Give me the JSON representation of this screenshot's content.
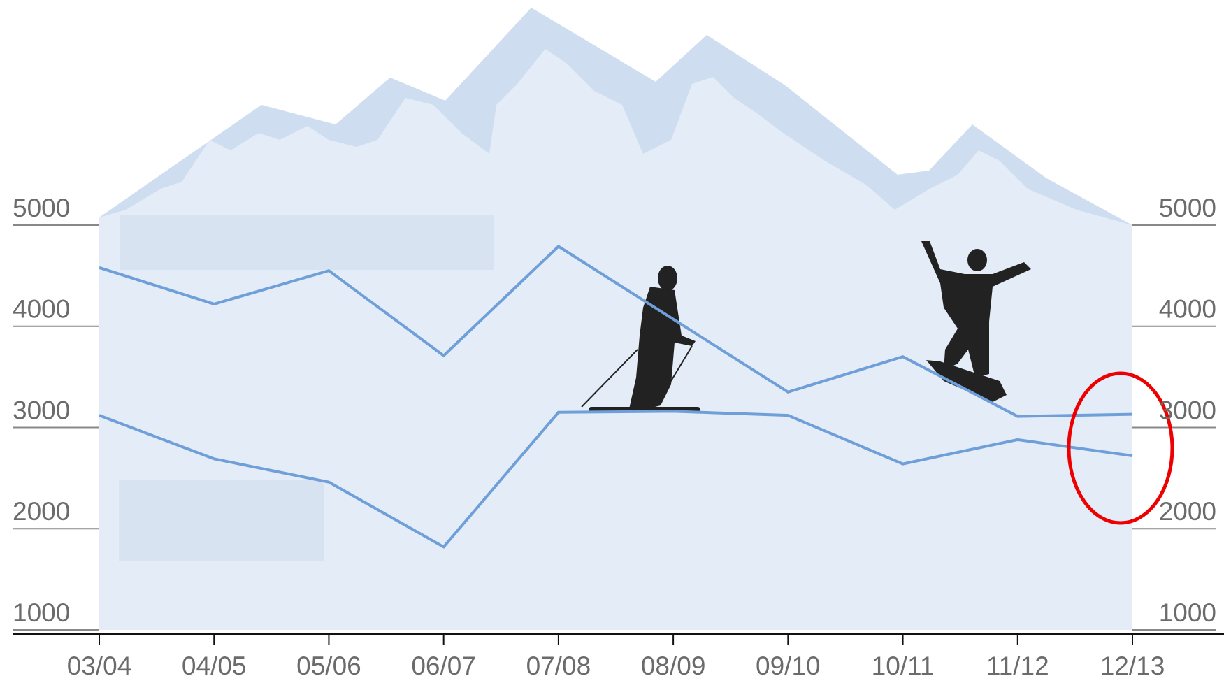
{
  "chart_data": {
    "type": "line",
    "categories": [
      "03/04",
      "04/05",
      "05/06",
      "06/07",
      "07/08",
      "08/09",
      "09/10",
      "10/11",
      "11/12",
      "12/13"
    ],
    "series": [
      {
        "color": "#6f9fd8",
        "values": [
          4580,
          4220,
          4550,
          3710,
          4790,
          4070,
          3350,
          3700,
          3110,
          3130
        ]
      },
      {
        "color": "#6f9fd8",
        "values": [
          3120,
          2690,
          2460,
          1820,
          3150,
          3160,
          3120,
          2640,
          2880,
          2720
        ]
      }
    ],
    "ylim": [
      1000,
      5000
    ],
    "yticks": [
      1000,
      2000,
      3000,
      4000,
      5000
    ],
    "y2lim": [
      1000,
      5000
    ],
    "y2ticks": [
      1000,
      2000,
      3000,
      4000,
      5000
    ]
  }
}
